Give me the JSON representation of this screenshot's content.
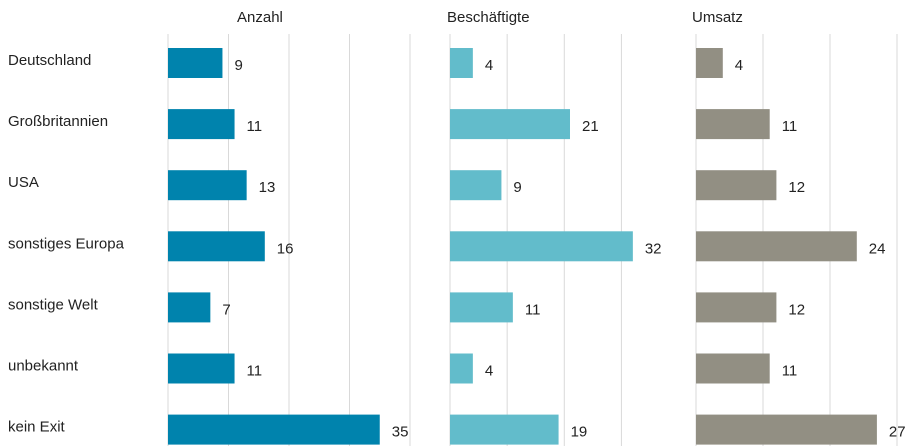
{
  "chart_data": {
    "type": "bar",
    "orientation": "horizontal",
    "facets": true,
    "grid": true,
    "categories": [
      "Deutschland",
      "Großbritannien",
      "USA",
      "sonstiges Europa",
      "sonstige Welt",
      "unbekannt",
      "kein Exit"
    ],
    "series": [
      {
        "name": "Anzahl",
        "color": "#0083ad",
        "values": [
          9,
          11,
          13,
          16,
          7,
          11,
          35
        ],
        "xlim": [
          0,
          40
        ],
        "xticks": [
          0,
          10,
          20,
          30,
          40
        ]
      },
      {
        "name": "Beschäftigte",
        "color": "#62bccb",
        "values": [
          4,
          21,
          9,
          32,
          11,
          4,
          19
        ],
        "xlim": [
          0,
          35
        ],
        "xticks": [
          0,
          10,
          20,
          30
        ]
      },
      {
        "name": "Umsatz",
        "color": "#928f83",
        "values": [
          4,
          11,
          12,
          24,
          12,
          11,
          27
        ],
        "xlim": [
          0,
          30
        ],
        "xticks": [
          0,
          10,
          20,
          30
        ]
      }
    ]
  }
}
